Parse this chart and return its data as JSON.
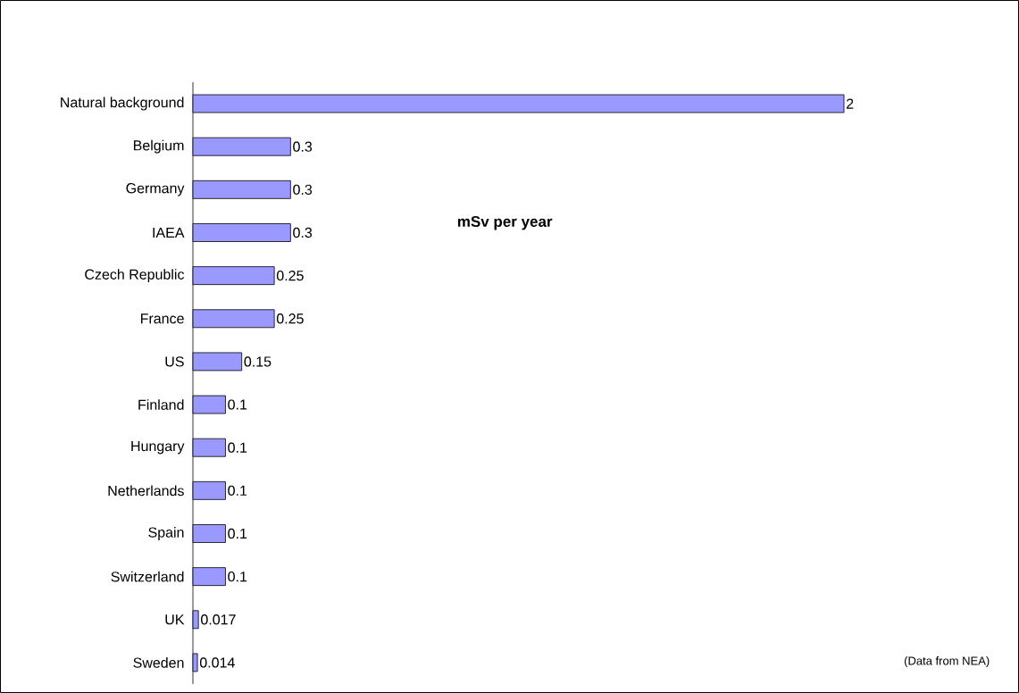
{
  "chart_data": {
    "type": "bar",
    "orientation": "horizontal",
    "categories": [
      "Natural background",
      "Belgium",
      "Germany",
      "IAEA",
      "Czech Republic",
      "France",
      "US",
      "Finland",
      "Hungary",
      "Netherlands",
      "Spain",
      "Switzerland",
      "UK",
      "Sweden"
    ],
    "values": [
      2,
      0.3,
      0.3,
      0.3,
      0.25,
      0.25,
      0.15,
      0.1,
      0.1,
      0.1,
      0.1,
      0.1,
      0.017,
      0.014
    ],
    "color": "#9999ff",
    "data_labels": true,
    "annotations": [
      "mSv per year",
      "(Data from NEA)"
    ]
  }
}
